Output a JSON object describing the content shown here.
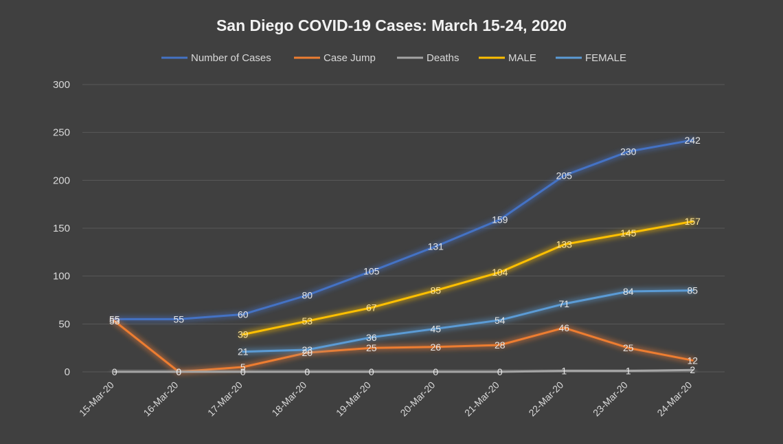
{
  "chart_data": {
    "type": "line",
    "title": "San Diego COVID-19 Cases: March 15-24, 2020",
    "xlabel": "",
    "ylabel": "",
    "ylim": [
      0,
      300
    ],
    "yticks": [
      0,
      50,
      100,
      150,
      200,
      250,
      300
    ],
    "grid": true,
    "legend_position": "top",
    "categories": [
      "15-Mar-20",
      "16-Mar-20",
      "17-Mar-20",
      "18-Mar-20",
      "19-Mar-20",
      "20-Mar-20",
      "21-Mar-20",
      "22-Mar-20",
      "23-Mar-20",
      "24-Mar-20"
    ],
    "series": [
      {
        "name": "Number of Cases",
        "color": "#4472c4",
        "values": [
          55,
          55,
          60,
          80,
          105,
          131,
          159,
          205,
          230,
          242
        ]
      },
      {
        "name": "Case Jump",
        "color": "#ed7d31",
        "values": [
          53,
          0,
          5,
          20,
          25,
          26,
          28,
          46,
          25,
          12
        ]
      },
      {
        "name": "Deaths",
        "color": "#a5a5a5",
        "values": [
          0,
          0,
          0,
          0,
          0,
          0,
          0,
          1,
          1,
          2
        ]
      },
      {
        "name": "MALE",
        "color": "#ffc000",
        "values": [
          null,
          null,
          39,
          53,
          67,
          85,
          104,
          133,
          145,
          157
        ]
      },
      {
        "name": "FEMALE",
        "color": "#5b9bd5",
        "values": [
          null,
          null,
          21,
          23,
          36,
          45,
          54,
          71,
          84,
          85
        ]
      }
    ]
  }
}
